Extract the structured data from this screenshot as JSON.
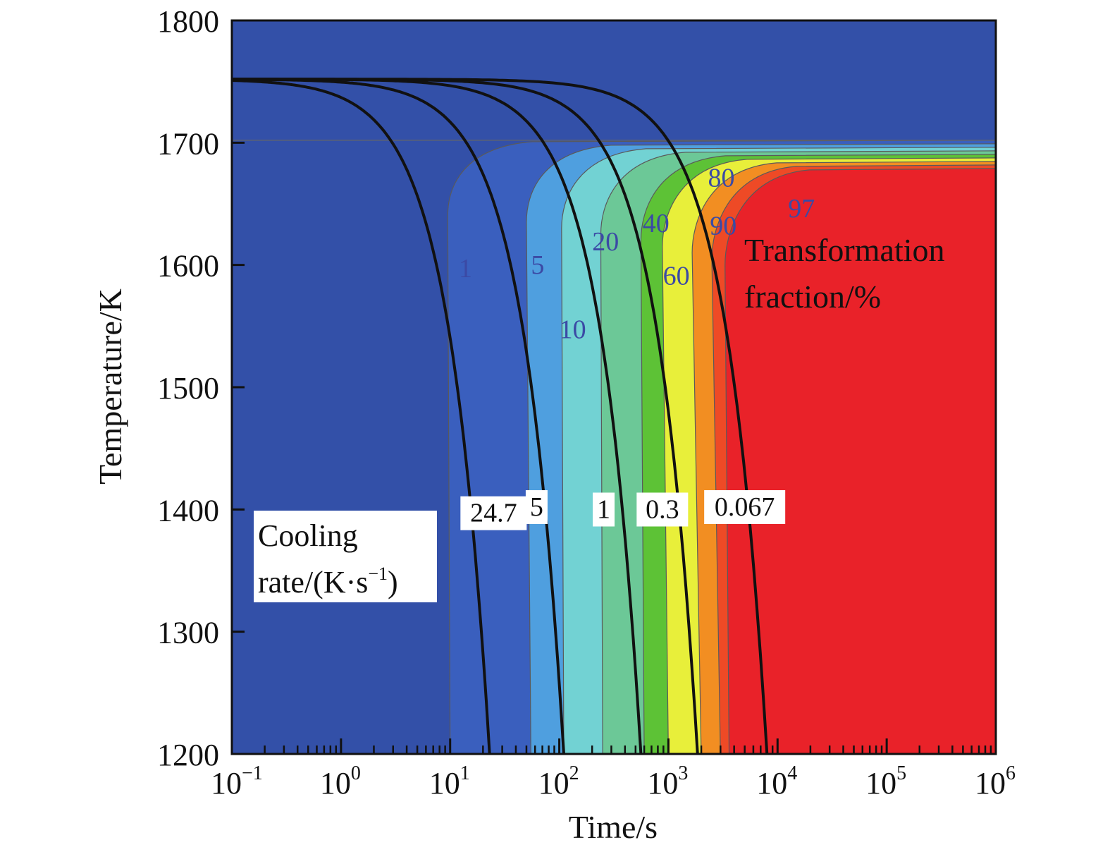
{
  "chart_data": {
    "type": "contour",
    "xlabel": "Time/s",
    "ylabel": "Temperature/K",
    "x_scale": "log",
    "xlim": [
      0.1,
      1000000
    ],
    "ylim": [
      1200,
      1800
    ],
    "x_ticks": [
      {
        "value": 0.1,
        "base": "10",
        "exp": "−1"
      },
      {
        "value": 1,
        "base": "10",
        "exp": "0"
      },
      {
        "value": 10,
        "base": "10",
        "exp": "1"
      },
      {
        "value": 100,
        "base": "10",
        "exp": "2"
      },
      {
        "value": 1000,
        "base": "10",
        "exp": "3"
      },
      {
        "value": 10000,
        "base": "10",
        "exp": "4"
      },
      {
        "value": 100000,
        "base": "10",
        "exp": "5"
      },
      {
        "value": 1000000,
        "base": "10",
        "exp": "6"
      }
    ],
    "y_ticks": [
      "1200",
      "1300",
      "1400",
      "1500",
      "1600",
      "1700",
      "1800"
    ],
    "y_tick_values": [
      1200,
      1300,
      1400,
      1500,
      1600,
      1700,
      1800
    ],
    "transformation_legend": [
      "Transformation",
      "fraction/%"
    ],
    "transformation_temperature": 1702,
    "contour_levels": [
      {
        "level": 1,
        "label": "1",
        "nose_time": 9.5,
        "bottom_time": 10,
        "color": "#3a5fbe",
        "label_pos": {
          "time": 12,
          "temp": 1590
        }
      },
      {
        "level": 5,
        "label": "5",
        "nose_time": 50,
        "bottom_time": 55,
        "color": "#4f9fdf",
        "label_pos": {
          "time": 55,
          "temp": 1593
        }
      },
      {
        "level": 10,
        "label": "10",
        "nose_time": 105,
        "bottom_time": 110,
        "color": "#72d2d3",
        "label_pos": {
          "time": 100,
          "temp": 1540
        }
      },
      {
        "level": 20,
        "label": "20",
        "nose_time": 240,
        "bottom_time": 250,
        "color": "#6cc897",
        "label_pos": {
          "time": 200,
          "temp": 1612
        }
      },
      {
        "level": 40,
        "label": "40",
        "nose_time": 560,
        "bottom_time": 600,
        "color": "#5dc236",
        "label_pos": {
          "time": 580,
          "temp": 1627
        }
      },
      {
        "level": 60,
        "label": "60",
        "nose_time": 880,
        "bottom_time": 1000,
        "color": "#e8ef3a",
        "label_pos": {
          "time": 890,
          "temp": 1584
        }
      },
      {
        "level": 80,
        "label": "80",
        "nose_time": 1650,
        "bottom_time": 2000,
        "color": "#f28e22",
        "label_pos": {
          "time": 2300,
          "temp": 1664
        }
      },
      {
        "level": 90,
        "label": "90",
        "nose_time": 2500,
        "bottom_time": 3000,
        "color": "#ee4a26",
        "label_pos": {
          "time": 2400,
          "temp": 1625
        }
      },
      {
        "level": 97,
        "label": "97",
        "nose_time": 3300,
        "bottom_time": 3600,
        "color": "#e92229",
        "label_pos": {
          "time": 12500,
          "temp": 1639
        }
      }
    ],
    "cooling_curves": [
      {
        "rate": 24.7,
        "label": "24.7",
        "label_pos": {
          "time": 25,
          "temp": 1390
        },
        "bottom_time": 23
      },
      {
        "rate": 5,
        "label": "5",
        "label_pos": {
          "time": 62,
          "temp": 1395
        },
        "bottom_time": 110
      },
      {
        "rate": 1,
        "label": "1",
        "label_pos": {
          "time": 255,
          "temp": 1393
        },
        "bottom_time": 560
      },
      {
        "rate": 0.3,
        "label": "0.3",
        "label_pos": {
          "time": 880,
          "temp": 1393
        },
        "bottom_time": 1850
      },
      {
        "rate": 0.067,
        "label": "0.067",
        "label_pos": {
          "time": 5000,
          "temp": 1395
        },
        "bottom_time": 8000
      }
    ],
    "cooling_rate_legend": {
      "line1": "Cooling",
      "line2_main": "rate/(K·s",
      "line2_exp": "−1",
      "line2_end": ")"
    },
    "colors": {
      "background": "#3350a8",
      "text_blue": "#3b4aa5",
      "curve": "#111111"
    }
  }
}
